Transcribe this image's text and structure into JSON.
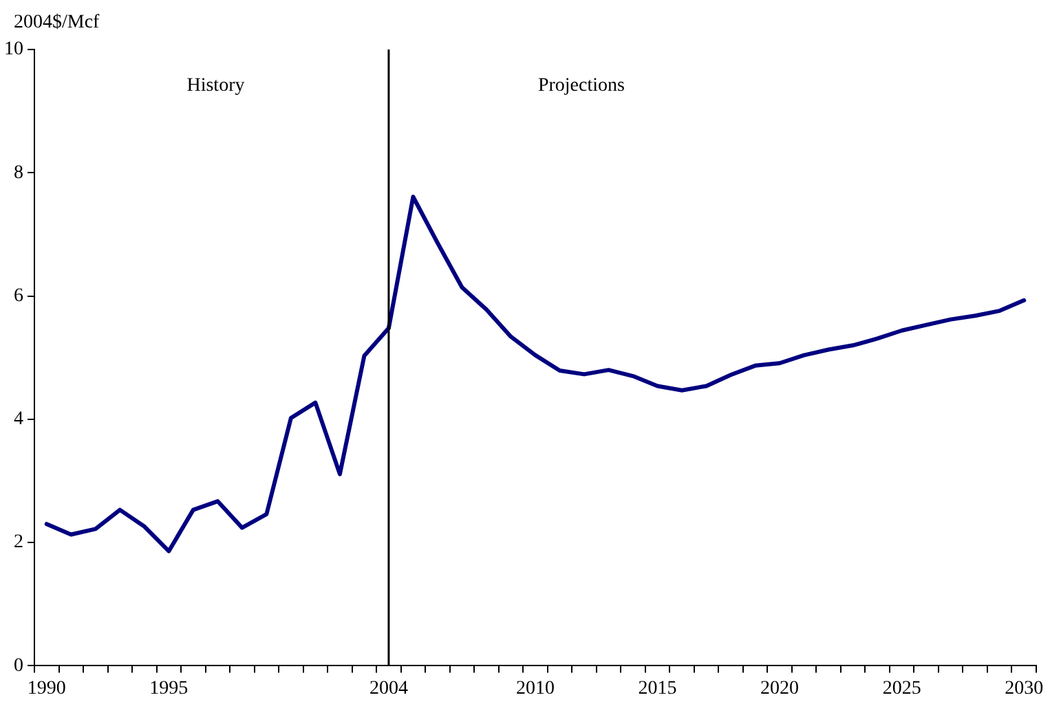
{
  "chart_data": {
    "type": "line",
    "ylabel": "2004$/Mcf",
    "categories": [
      "1990",
      null,
      null,
      null,
      null,
      "1995",
      null,
      null,
      null,
      null,
      null,
      null,
      null,
      null,
      "2004",
      null,
      null,
      null,
      null,
      null,
      "2010",
      null,
      null,
      null,
      null,
      "2015",
      null,
      null,
      null,
      null,
      "2020",
      null,
      null,
      null,
      null,
      "2025",
      null,
      null,
      null,
      null,
      "2030"
    ],
    "series": [
      {
        "color": "#000080",
        "values": [
          2.3,
          2.13,
          2.22,
          2.53,
          2.26,
          1.86,
          2.53,
          2.67,
          2.24,
          2.46,
          4.02,
          4.27,
          3.11,
          5.03,
          5.48,
          7.61,
          6.86,
          6.14,
          5.78,
          5.34,
          5.04,
          4.79,
          4.73,
          4.8,
          4.7,
          4.54,
          4.47,
          4.54,
          4.72,
          4.87,
          4.91,
          5.04,
          5.13,
          5.2,
          5.31,
          5.44,
          5.53,
          5.62,
          5.68,
          5.76,
          5.93
        ]
      }
    ],
    "ylim": [
      0,
      10
    ],
    "yticks": [
      0,
      2,
      4,
      6,
      8,
      10
    ],
    "grid": false,
    "legend": false,
    "marker": "none",
    "line_style": "solid",
    "ref_lines": [
      {
        "axis": "x",
        "value": "2004",
        "color": "#000000",
        "line_style": "solid"
      }
    ],
    "annotations": [
      "History",
      "Projections"
    ]
  }
}
